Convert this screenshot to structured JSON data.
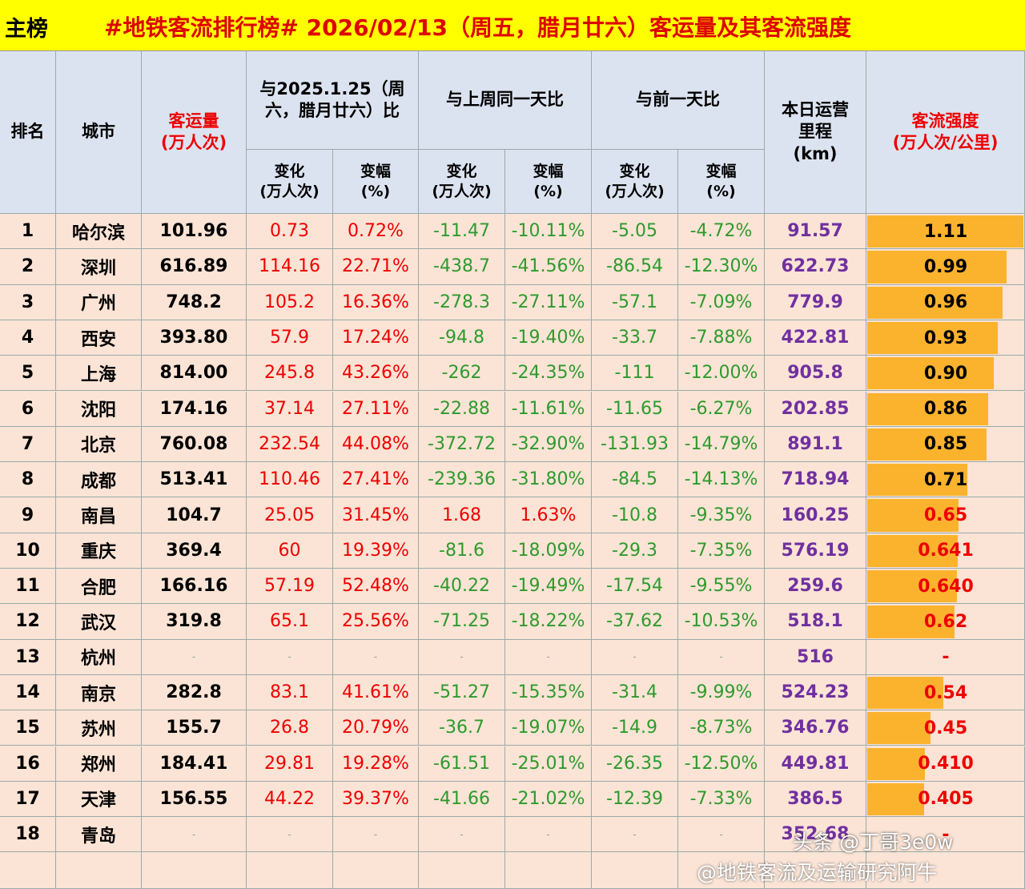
{
  "title_tag": "主榜",
  "title": "#地铁客流排行榜# 2026/02/13（周五，腊月廿六）客运量及其客流强度",
  "header": {
    "rank": "排名",
    "city": "城市",
    "volume": "客运量\n(万人次)",
    "groups": [
      "与2025.1.25（周六，腊月廿六）比",
      "与上周同一天比",
      "与前一天比"
    ],
    "sub": [
      "变化\n(万人次)",
      "变幅\n(%)",
      "变化\n(万人次)",
      "变幅\n(%)",
      "变化\n(万人次)",
      "变幅\n(%)"
    ],
    "mileage": "本日运营\n里程\n(km)",
    "intensity": "客流强度\n(万人次/公里)"
  },
  "table": {
    "rows": [
      [
        "1",
        "哈尔滨",
        "101.96",
        "0.73",
        "0.72%",
        "-11.47",
        "-10.11%",
        "-5.05",
        "-4.72%",
        "91.57",
        "1.11"
      ],
      [
        "2",
        "深圳",
        "616.89",
        "114.16",
        "22.71%",
        "-438.7",
        "-41.56%",
        "-86.54",
        "-12.30%",
        "622.73",
        "0.99"
      ],
      [
        "3",
        "广州",
        "748.2",
        "105.2",
        "16.36%",
        "-278.3",
        "-27.11%",
        "-57.1",
        "-7.09%",
        "779.9",
        "0.96"
      ],
      [
        "4",
        "西安",
        "393.80",
        "57.9",
        "17.24%",
        "-94.8",
        "-19.40%",
        "-33.7",
        "-7.88%",
        "422.81",
        "0.93"
      ],
      [
        "5",
        "上海",
        "814.00",
        "245.8",
        "43.26%",
        "-262",
        "-24.35%",
        "-111",
        "-12.00%",
        "905.8",
        "0.90"
      ],
      [
        "6",
        "沈阳",
        "174.16",
        "37.14",
        "27.11%",
        "-22.88",
        "-11.61%",
        "-11.65",
        "-6.27%",
        "202.85",
        "0.86"
      ],
      [
        "7",
        "北京",
        "760.08",
        "232.54",
        "44.08%",
        "-372.72",
        "-32.90%",
        "-131.93",
        "-14.79%",
        "891.1",
        "0.85"
      ],
      [
        "8",
        "成都",
        "513.41",
        "110.46",
        "27.41%",
        "-239.36",
        "-31.80%",
        "-84.5",
        "-14.13%",
        "718.94",
        "0.71"
      ],
      [
        "9",
        "南昌",
        "104.7",
        "25.05",
        "31.45%",
        "1.68",
        "1.63%",
        "-10.8",
        "-9.35%",
        "160.25",
        "0.65"
      ],
      [
        "10",
        "重庆",
        "369.4",
        "60",
        "19.39%",
        "-81.6",
        "-18.09%",
        "-29.3",
        "-7.35%",
        "576.19",
        "0.641"
      ],
      [
        "11",
        "合肥",
        "166.16",
        "57.19",
        "52.48%",
        "-40.22",
        "-19.49%",
        "-17.54",
        "-9.55%",
        "259.6",
        "0.640"
      ],
      [
        "12",
        "武汉",
        "319.8",
        "65.1",
        "25.56%",
        "-71.25",
        "-18.22%",
        "-37.62",
        "-10.53%",
        "518.1",
        "0.62"
      ],
      [
        "13",
        "杭州",
        "-",
        "-",
        "-",
        "-",
        "-",
        "-",
        "-",
        "516",
        "-"
      ],
      [
        "14",
        "南京",
        "282.8",
        "83.1",
        "41.61%",
        "-51.27",
        "-15.35%",
        "-31.4",
        "-9.99%",
        "524.23",
        "0.54"
      ],
      [
        "15",
        "苏州",
        "155.7",
        "26.8",
        "20.79%",
        "-36.7",
        "-19.07%",
        "-14.9",
        "-8.73%",
        "346.76",
        "0.45"
      ],
      [
        "16",
        "郑州",
        "184.41",
        "29.81",
        "19.28%",
        "-61.51",
        "-25.01%",
        "-26.35",
        "-12.50%",
        "449.81",
        "0.410"
      ],
      [
        "17",
        "天津",
        "156.55",
        "44.22",
        "39.37%",
        "-41.66",
        "-21.02%",
        "-12.39",
        "-7.33%",
        "386.5",
        "0.405"
      ],
      [
        "18",
        "青岛",
        "-",
        "-",
        "-",
        "-",
        "-",
        "-",
        "-",
        "352.68",
        "-"
      ]
    ]
  },
  "watermarks": [
    "头条 @丁哥3e0w",
    "@地铁客流及运输研究阿牛"
  ]
}
